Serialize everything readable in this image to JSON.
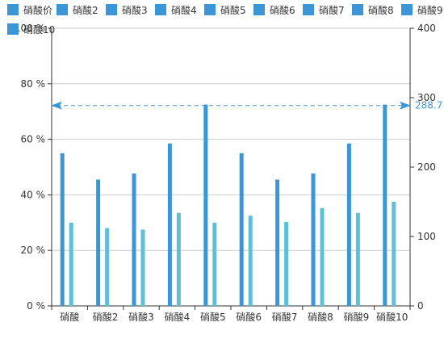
{
  "chart_data": {
    "type": "bar",
    "categories": [
      "硝酸",
      "硝酸2",
      "硝酸3",
      "硝酸4",
      "硝酸5",
      "硝酸6",
      "硝酸7",
      "硝酸8",
      "硝酸9",
      "硝酸10"
    ],
    "legend": [
      "硝酸价",
      "硝酸2",
      "硝酸3",
      "硝酸4",
      "硝酸5",
      "硝酸6",
      "硝酸7",
      "硝酸8",
      "硝酸9",
      "硝酸10"
    ],
    "legend_position": "top",
    "series": [
      {
        "axis": "left",
        "color": "#3a96d6",
        "values": [
          55,
          45.5,
          47.7,
          58.5,
          72.5,
          55,
          45.5,
          47.7,
          58.5,
          72.5
        ]
      },
      {
        "axis": "right",
        "color": "#5cc0d9",
        "values": [
          120,
          112,
          110,
          134,
          120,
          130,
          121,
          141,
          134,
          150
        ]
      }
    ],
    "y_left": {
      "ylim": [
        0,
        100
      ],
      "ticks": [
        "0 %",
        "20 %",
        "40 %",
        "60 %",
        "80 %",
        "100 %"
      ]
    },
    "y_right": {
      "ylim": [
        0,
        400
      ],
      "ticks": [
        "0",
        "100",
        "200",
        "300",
        "400"
      ]
    },
    "markline": {
      "axis": "right",
      "value": 288.71,
      "label": "288.71",
      "color": "#3a96d6"
    },
    "grid": true
  }
}
